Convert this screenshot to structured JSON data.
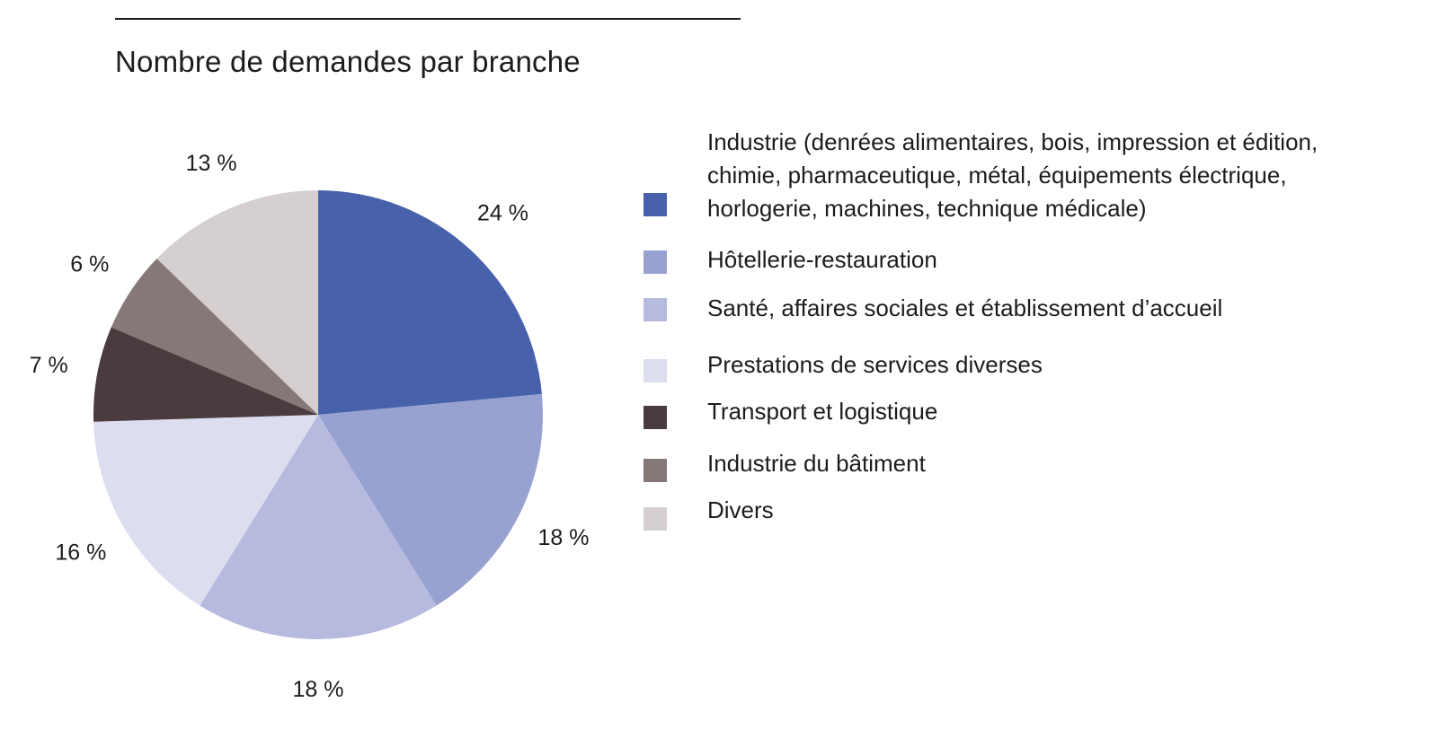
{
  "chart_data": {
    "type": "pie",
    "title": "Nombre de demandes par branche",
    "slices": [
      {
        "label": "Industrie (denrées alimentaires, bois, impression et édition,\nchimie, pharmaceutique, métal, équipements électrique,\nhorlogerie, machines, technique médicale)",
        "value": 24,
        "value_label": "24 %",
        "color": "#4762ab"
      },
      {
        "label": "Hôtellerie-restauration",
        "value": 18,
        "value_label": "18 %",
        "color": "#98a2d1"
      },
      {
        "label": "Santé, affaires sociales et établissement d’accueil",
        "value": 18,
        "value_label": "18 %",
        "color": "#b7badf"
      },
      {
        "label": "Prestations de services diverses",
        "value": 16,
        "value_label": "16 %",
        "color": "#dcdef0"
      },
      {
        "label": "Transport et logistique",
        "value": 7,
        "value_label": "7 %",
        "color": "#4a3b3f"
      },
      {
        "label": "Industrie du bâtiment",
        "value": 6,
        "value_label": "6 %",
        "color": "#877878"
      },
      {
        "label": "Divers",
        "value": 13,
        "value_label": "13 %",
        "color": "#d5cfcf"
      }
    ],
    "legend_position": "right",
    "start_angle": "12 o'clock",
    "direction": "clockwise"
  }
}
